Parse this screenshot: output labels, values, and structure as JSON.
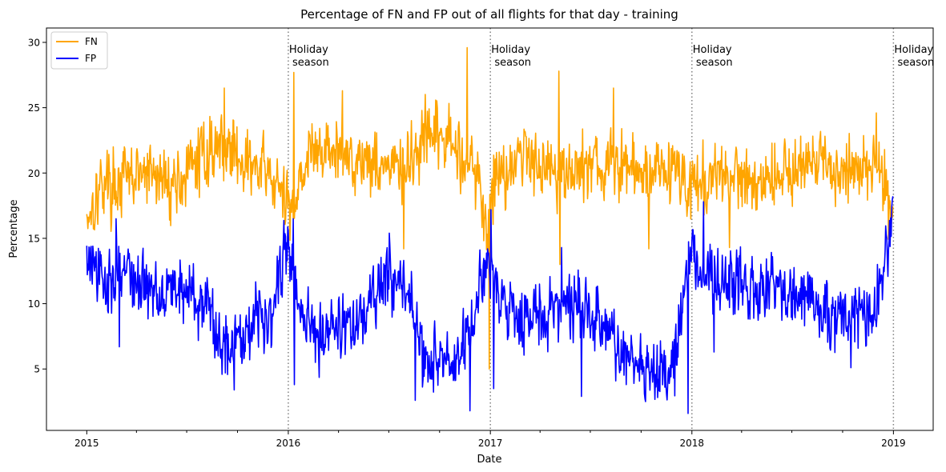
{
  "chart_data": {
    "type": "line",
    "title": "Percentage of FN and FP out of all flights for that day - training",
    "xlabel": "Date",
    "ylabel": "Percentage",
    "x_start": "2015-01-01",
    "x_end": "2018-12-31",
    "xlim": [
      "2014-10-20",
      "2019-03-14"
    ],
    "ylim": [
      0.3,
      31.1
    ],
    "x_major_ticks": [
      "2015",
      "2016",
      "2017",
      "2018",
      "2019"
    ],
    "y_ticks": [
      5,
      10,
      15,
      20,
      25,
      30
    ],
    "grid": false,
    "legend_position": "top-left",
    "series": [
      {
        "name": "FN",
        "color": "#ffa500",
        "anchors": [
          [
            "2015-01-01",
            16.8
          ],
          [
            "2015-02-01",
            19.5
          ],
          [
            "2015-03-01",
            19.2
          ],
          [
            "2015-04-01",
            19.8
          ],
          [
            "2015-05-01",
            19.8
          ],
          [
            "2015-06-01",
            19.2
          ],
          [
            "2015-07-01",
            19.8
          ],
          [
            "2015-08-01",
            21.5
          ],
          [
            "2015-09-01",
            22.2
          ],
          [
            "2015-10-01",
            21.5
          ],
          [
            "2015-11-01",
            20.3
          ],
          [
            "2015-12-01",
            19.8
          ],
          [
            "2015-12-28",
            17.5
          ],
          [
            "2016-01-05",
            17.0
          ],
          [
            "2016-01-20",
            19.5
          ],
          [
            "2016-02-01",
            21.0
          ],
          [
            "2016-03-01",
            21.8
          ],
          [
            "2016-04-01",
            21.5
          ],
          [
            "2016-05-01",
            21.2
          ],
          [
            "2016-06-01",
            21.0
          ],
          [
            "2016-07-01",
            20.5
          ],
          [
            "2016-08-01",
            20.2
          ],
          [
            "2016-09-01",
            22.3
          ],
          [
            "2016-10-01",
            22.8
          ],
          [
            "2016-11-01",
            21.8
          ],
          [
            "2016-12-01",
            20.8
          ],
          [
            "2016-12-27",
            15.5
          ],
          [
            "2017-01-05",
            19.5
          ],
          [
            "2017-02-01",
            20.5
          ],
          [
            "2017-03-01",
            21.5
          ],
          [
            "2017-04-01",
            21.0
          ],
          [
            "2017-05-01",
            20.2
          ],
          [
            "2017-06-01",
            20.0
          ],
          [
            "2017-07-01",
            20.8
          ],
          [
            "2017-08-01",
            20.3
          ],
          [
            "2017-09-01",
            20.5
          ],
          [
            "2017-10-01",
            20.0
          ],
          [
            "2017-11-01",
            20.5
          ],
          [
            "2017-12-01",
            20.5
          ],
          [
            "2017-12-27",
            18.5
          ],
          [
            "2018-01-05",
            19.5
          ],
          [
            "2018-02-01",
            19.2
          ],
          [
            "2018-03-01",
            19.5
          ],
          [
            "2018-04-01",
            19.8
          ],
          [
            "2018-05-01",
            19.5
          ],
          [
            "2018-06-01",
            19.8
          ],
          [
            "2018-07-01",
            20.5
          ],
          [
            "2018-08-01",
            20.5
          ],
          [
            "2018-09-01",
            20.3
          ],
          [
            "2018-10-01",
            20.3
          ],
          [
            "2018-11-01",
            20.5
          ],
          [
            "2018-12-01",
            21.0
          ],
          [
            "2018-12-31",
            16.5
          ]
        ],
        "spikes": [
          [
            "2015-09-07",
            26.5
          ],
          [
            "2016-01-11",
            27.7
          ],
          [
            "2016-04-08",
            26.3
          ],
          [
            "2016-11-20",
            29.6
          ],
          [
            "2016-12-30",
            5.0
          ],
          [
            "2017-05-05",
            27.8
          ],
          [
            "2017-05-07",
            13.0
          ],
          [
            "2017-08-12",
            26.5
          ],
          [
            "2017-10-15",
            14.2
          ],
          [
            "2018-03-10",
            14.3
          ],
          [
            "2018-12-01",
            24.6
          ],
          [
            "2016-07-28",
            14.2
          ],
          [
            "2015-02-15",
            16.2
          ]
        ]
      },
      {
        "name": "FP",
        "color": "#0000ff",
        "anchors": [
          [
            "2015-01-01",
            13.5
          ],
          [
            "2015-02-01",
            11.2
          ],
          [
            "2015-03-01",
            13.0
          ],
          [
            "2015-04-01",
            11.5
          ],
          [
            "2015-05-01",
            11.0
          ],
          [
            "2015-06-01",
            11.5
          ],
          [
            "2015-07-01",
            11.0
          ],
          [
            "2015-08-01",
            10.0
          ],
          [
            "2015-09-01",
            7.0
          ],
          [
            "2015-10-01",
            7.5
          ],
          [
            "2015-11-01",
            9.0
          ],
          [
            "2015-12-01",
            9.5
          ],
          [
            "2015-12-28",
            14.5
          ],
          [
            "2016-01-05",
            13.0
          ],
          [
            "2016-01-20",
            10.0
          ],
          [
            "2016-02-01",
            8.5
          ],
          [
            "2016-03-01",
            8.0
          ],
          [
            "2016-04-01",
            8.5
          ],
          [
            "2016-05-01",
            8.2
          ],
          [
            "2016-06-01",
            10.0
          ],
          [
            "2016-07-01",
            12.0
          ],
          [
            "2016-08-01",
            11.5
          ],
          [
            "2016-09-01",
            6.0
          ],
          [
            "2016-10-01",
            5.5
          ],
          [
            "2016-11-01",
            5.2
          ],
          [
            "2016-12-01",
            8.5
          ],
          [
            "2016-12-27",
            13.5
          ],
          [
            "2017-01-05",
            12.5
          ],
          [
            "2017-02-01",
            9.5
          ],
          [
            "2017-03-01",
            9.0
          ],
          [
            "2017-04-01",
            9.0
          ],
          [
            "2017-05-01",
            9.5
          ],
          [
            "2017-06-01",
            10.0
          ],
          [
            "2017-07-01",
            9.0
          ],
          [
            "2017-08-01",
            8.0
          ],
          [
            "2017-09-01",
            5.5
          ],
          [
            "2017-10-01",
            5.5
          ],
          [
            "2017-11-01",
            5.0
          ],
          [
            "2017-12-01",
            6.0
          ],
          [
            "2017-12-27",
            12.5
          ],
          [
            "2018-01-05",
            14.0
          ],
          [
            "2018-02-01",
            12.0
          ],
          [
            "2018-03-01",
            11.5
          ],
          [
            "2018-04-01",
            11.5
          ],
          [
            "2018-05-01",
            10.5
          ],
          [
            "2018-06-01",
            11.5
          ],
          [
            "2018-07-01",
            11.0
          ],
          [
            "2018-08-01",
            10.5
          ],
          [
            "2018-09-01",
            9.0
          ],
          [
            "2018-10-01",
            8.5
          ],
          [
            "2018-11-01",
            9.5
          ],
          [
            "2018-12-01",
            9.5
          ],
          [
            "2018-12-31",
            16.5
          ]
        ],
        "spikes": [
          [
            "2015-02-23",
            16.5
          ],
          [
            "2015-03-01",
            6.7
          ],
          [
            "2015-09-25",
            3.4
          ],
          [
            "2016-01-10",
            16.5
          ],
          [
            "2016-01-12",
            3.8
          ],
          [
            "2016-07-02",
            15.4
          ],
          [
            "2016-08-18",
            2.6
          ],
          [
            "2016-11-25",
            1.8
          ],
          [
            "2017-01-02",
            17.2
          ],
          [
            "2017-01-07",
            3.5
          ],
          [
            "2017-05-10",
            14.3
          ],
          [
            "2017-06-15",
            2.9
          ],
          [
            "2017-12-25",
            1.6
          ],
          [
            "2018-01-22",
            17.8
          ],
          [
            "2018-02-10",
            6.3
          ],
          [
            "2018-10-16",
            5.1
          ]
        ]
      }
    ],
    "annotations": [
      {
        "date": "2016-01-01",
        "text_line1": "Holiday",
        "text_line2": " season"
      },
      {
        "date": "2017-01-01",
        "text_line1": "Holiday",
        "text_line2": " season"
      },
      {
        "date": "2018-01-01",
        "text_line1": "Holiday",
        "text_line2": " season"
      },
      {
        "date": "2019-01-01",
        "text_line1": "Holiday",
        "text_line2": " season"
      }
    ]
  }
}
